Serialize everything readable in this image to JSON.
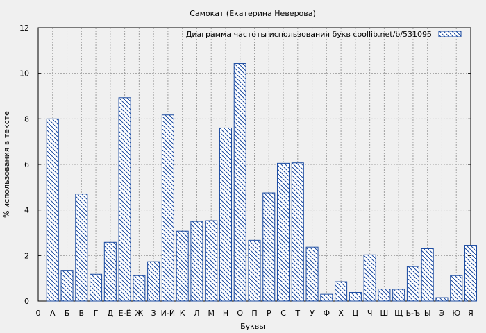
{
  "chart_data": {
    "type": "bar",
    "title": "Самокат (Екатерина Неверова)",
    "xlabel": "Буквы",
    "ylabel": "% использования в тексте",
    "legend": {
      "label": "Диаграмма частоты использования букв  coollib.net/b/531095",
      "position": "top-right"
    },
    "ylim": [
      0,
      12
    ],
    "yticks": [
      0,
      2,
      4,
      6,
      8,
      10,
      12
    ],
    "grid": true,
    "bar_color": "#1a4aa0",
    "tick_labels": [
      "0",
      "А",
      "Б",
      "В",
      "Г",
      "Д",
      "Е-Ё",
      "Ж",
      "З",
      "И-Й",
      "К",
      "Л",
      "М",
      "Н",
      "О",
      "П",
      "Р",
      "С",
      "Т",
      "У",
      "Ф",
      "Х",
      "Ц",
      "Ч",
      "Ш",
      "Щ",
      "Ь-Ъ",
      "Ы",
      "Э",
      "Ю",
      "Я"
    ],
    "categories": [
      "А",
      "Б",
      "В",
      "Г",
      "Д",
      "Е-Ё",
      "Ж",
      "З",
      "И-Й",
      "К",
      "Л",
      "М",
      "Н",
      "О",
      "П",
      "Р",
      "С",
      "Т",
      "У",
      "Ф",
      "Х",
      "Ц",
      "Ч",
      "Ш",
      "Щ",
      "Ь-Ъ",
      "Ы",
      "Э",
      "Ю",
      "Я"
    ],
    "values": [
      8.0,
      1.35,
      4.7,
      1.18,
      2.58,
      8.93,
      1.12,
      1.73,
      8.17,
      3.07,
      3.5,
      3.53,
      7.6,
      10.43,
      2.67,
      4.75,
      6.05,
      6.07,
      2.37,
      0.3,
      0.85,
      0.38,
      2.03,
      0.53,
      0.52,
      1.52,
      2.3,
      0.15,
      1.12,
      2.45
    ]
  }
}
